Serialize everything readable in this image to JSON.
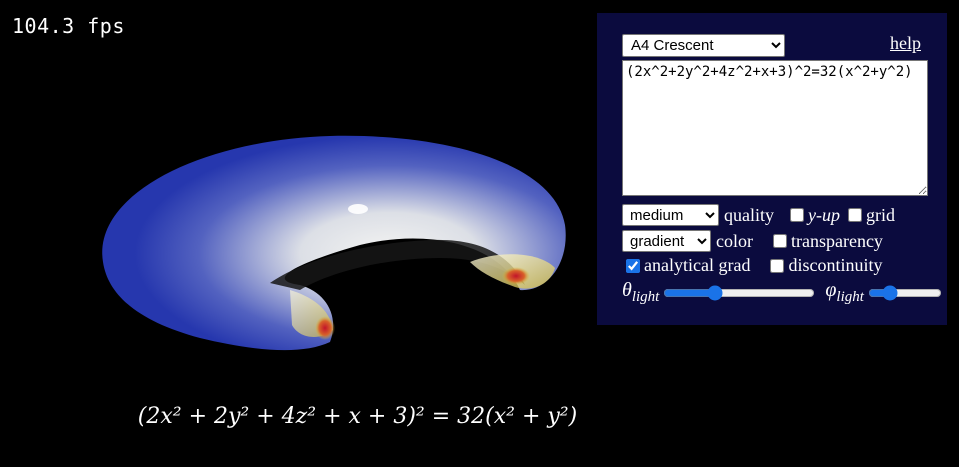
{
  "fps": {
    "text": "104.3 fps"
  },
  "render": {
    "colors": {
      "blue": "#2637ae",
      "white": "#f2f3f5",
      "yellow": "#d8c23a",
      "red": "#b5172c",
      "background": "#000000"
    }
  },
  "formula": {
    "display": "(2x² + 2y² + 4z² + x + 3)² = 32(x² + y²)"
  },
  "panel": {
    "background": "#0b0b3e",
    "preset": {
      "selected": "A4 Crescent"
    },
    "help_label": "help",
    "equation": "(2x^2+2y^2+4z^2+x+3)^2=32(x^2+y^2)",
    "quality": {
      "selected": "medium",
      "label": "quality"
    },
    "yup": {
      "label": "y-up",
      "checked": false
    },
    "grid": {
      "label": "grid",
      "checked": false
    },
    "color": {
      "selected": "gradient",
      "label": "color"
    },
    "transparency": {
      "label": "transparency",
      "checked": false
    },
    "analytical_grad": {
      "label": "analytical grad",
      "checked": true
    },
    "discontinuity": {
      "label": "discontinuity",
      "checked": false
    },
    "theta_light": {
      "symbol": "θ",
      "sub": "light",
      "value": 0.32
    },
    "phi_light": {
      "symbol": "φ",
      "sub": "light",
      "value": 0.25
    }
  }
}
